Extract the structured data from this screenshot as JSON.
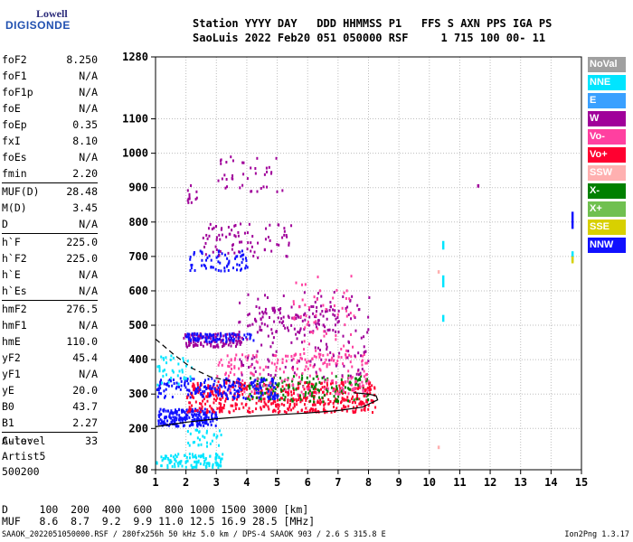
{
  "logo": {
    "line1": "Lowell",
    "line2": "DIGISONDE"
  },
  "header": {
    "line1": "Station YYYY DAY   DDD HHMMSS P1   FFS S AXN PPS IGA PS",
    "line2": "SaoLuis 2022 Feb20 051 050000 RSF     1 715 100 00- 11"
  },
  "params": [
    {
      "label": "foF2",
      "value": "8.250"
    },
    {
      "label": "foF1",
      "value": "N/A"
    },
    {
      "label": "foF1p",
      "value": "N/A"
    },
    {
      "label": "foE",
      "value": "N/A"
    },
    {
      "label": "foEp",
      "value": "0.35"
    },
    {
      "label": "fxI",
      "value": "8.10"
    },
    {
      "label": "foEs",
      "value": "N/A"
    },
    {
      "label": "fmin",
      "value": "2.20"
    },
    {
      "label": "MUF(D)",
      "value": "28.48"
    },
    {
      "label": "M(D)",
      "value": "3.45"
    },
    {
      "label": "D",
      "value": "N/A"
    },
    {
      "label": "h`F",
      "value": "225.0"
    },
    {
      "label": "h`F2",
      "value": "225.0"
    },
    {
      "label": "h`E",
      "value": "N/A"
    },
    {
      "label": "h`Es",
      "value": "N/A"
    },
    {
      "label": "hmF2",
      "value": "276.5"
    },
    {
      "label": "hmF1",
      "value": "N/A"
    },
    {
      "label": "hmE",
      "value": "110.0"
    },
    {
      "label": "yF2",
      "value": "45.4"
    },
    {
      "label": "yF1",
      "value": "N/A"
    },
    {
      "label": "yE",
      "value": "20.0"
    },
    {
      "label": "B0",
      "value": "43.7"
    },
    {
      "label": "B1",
      "value": "2.27"
    },
    {
      "label": "C-level",
      "value": "33"
    }
  ],
  "auto": {
    "line1": "Auto:",
    "line2": "Artist5",
    "line3": "500200"
  },
  "legend": [
    {
      "label": "NoVal",
      "color": "#a0a0a0"
    },
    {
      "label": "NNE",
      "color": "#00e5ff"
    },
    {
      "label": "E",
      "color": "#3aa0ff"
    },
    {
      "label": "W",
      "color": "#a0009a"
    },
    {
      "label": "Vo-",
      "color": "#ff40a0"
    },
    {
      "label": "Vo+",
      "color": "#ff0030"
    },
    {
      "label": "SSW",
      "color": "#ffb0b0"
    },
    {
      "label": "X-",
      "color": "#008000"
    },
    {
      "label": "X+",
      "color": "#70c050"
    },
    {
      "label": "SSE",
      "color": "#d8d000"
    },
    {
      "label": "NNW",
      "color": "#1010ff"
    }
  ],
  "footer": {
    "line1": "D     100  200  400  600  800 1000 1500 3000 [km]",
    "line2": "MUF   8.6  8.7  9.2  9.9 11.0 12.5 16.9 28.5 [MHz]"
  },
  "bottom": {
    "left": "SAAOK_2022051050000.RSF / 280fx256h 50 kHz 5.0 km / DPS-4 SAAOK 903 / 2.6 S 315.8 E",
    "right": "Ion2Png 1.3.17"
  },
  "chart_data": {
    "type": "scatter",
    "xlim": [
      1,
      15
    ],
    "ylim": [
      80,
      1280
    ],
    "x_ticks": [
      1,
      2,
      3,
      4,
      5,
      6,
      7,
      8,
      9,
      10,
      11,
      12,
      13,
      14,
      15
    ],
    "y_ticks": [
      80,
      200,
      300,
      400,
      500,
      600,
      700,
      800,
      900,
      1000,
      1100,
      1280
    ],
    "grid": true,
    "trace_lower": {
      "x": [
        1.0,
        2.0,
        3.0,
        4.0,
        5.0,
        6.0,
        7.0,
        7.8,
        8.3,
        8.25,
        8.0,
        7.5
      ],
      "y": [
        205,
        218,
        228,
        235,
        240,
        245,
        252,
        262,
        283,
        295,
        300,
        304
      ]
    },
    "trace_dashed": {
      "x": [
        1.0,
        1.6,
        2.2,
        2.8,
        3.6
      ],
      "y": [
        460,
        415,
        375,
        350,
        335
      ]
    },
    "clusters": [
      {
        "x": [
          1.05,
          3.0
        ],
        "y": [
          210,
          260
        ],
        "color": "#1010ff",
        "n": 220
      },
      {
        "x": [
          1.0,
          3.2
        ],
        "y": [
          90,
          130
        ],
        "color": "#00e5ff",
        "n": 120
      },
      {
        "x": [
          2.0,
          8.2
        ],
        "y": [
          250,
          340
        ],
        "color": "#ff0030",
        "n": 520
      },
      {
        "x": [
          4.0,
          8.0
        ],
        "y": [
          280,
          360
        ],
        "color": "#008000",
        "n": 160
      },
      {
        "x": [
          3.0,
          8.0
        ],
        "y": [
          300,
          420
        ],
        "color": "#ff40a0",
        "n": 220
      },
      {
        "x": [
          1.0,
          5.0
        ],
        "y": [
          290,
          350
        ],
        "color": "#1010ff",
        "n": 200
      },
      {
        "x": [
          1.9,
          3.8
        ],
        "y": [
          440,
          480
        ],
        "color": "#a0009a",
        "n": 130
      },
      {
        "x": [
          1.9,
          4.2
        ],
        "y": [
          455,
          480
        ],
        "color": "#1010ff",
        "n": 80
      },
      {
        "x": [
          4.0,
          7.0
        ],
        "y": [
          480,
          560
        ],
        "color": "#a0009a",
        "n": 90
      },
      {
        "x": [
          2.0,
          4.0
        ],
        "y": [
          660,
          720
        ],
        "color": "#1010ff",
        "n": 70
      },
      {
        "x": [
          2.5,
          5.5
        ],
        "y": [
          700,
          800
        ],
        "color": "#a0009a",
        "n": 80
      },
      {
        "x": [
          3.0,
          5.2
        ],
        "y": [
          880,
          1000
        ],
        "color": "#a0009a",
        "n": 40
      },
      {
        "x": [
          2.0,
          2.5
        ],
        "y": [
          860,
          910
        ],
        "color": "#a0009a",
        "n": 12
      },
      {
        "x": [
          3.7,
          8.0
        ],
        "y": [
          350,
          600
        ],
        "color": "#a0009a",
        "n": 150
      },
      {
        "x": [
          5.5,
          7.5
        ],
        "y": [
          400,
          650
        ],
        "color": "#ff40a0",
        "n": 70
      },
      {
        "x": [
          1.0,
          2.2
        ],
        "y": [
          330,
          420
        ],
        "color": "#00e5ff",
        "n": 40
      },
      {
        "x": [
          2.0,
          3.2
        ],
        "y": [
          150,
          200
        ],
        "color": "#00e5ff",
        "n": 30
      }
    ],
    "vertical_marks": [
      {
        "x": 10.45,
        "y": [
          720,
          745
        ],
        "color": "#00e5ff"
      },
      {
        "x": 10.45,
        "y": [
          610,
          645
        ],
        "color": "#00e5ff"
      },
      {
        "x": 10.45,
        "y": [
          510,
          530
        ],
        "color": "#00e5ff"
      },
      {
        "x": 14.7,
        "y": [
          780,
          830
        ],
        "color": "#1010ff"
      },
      {
        "x": 14.7,
        "y": [
          685,
          715
        ],
        "color": "#00e5ff"
      },
      {
        "x": 14.7,
        "y": [
          680,
          700
        ],
        "color": "#d8d000"
      },
      {
        "x": 11.6,
        "y": [
          900,
          910
        ],
        "color": "#a0009a"
      },
      {
        "x": 10.3,
        "y": [
          650,
          660
        ],
        "color": "#ffb0b0"
      },
      {
        "x": 10.3,
        "y": [
          140,
          150
        ],
        "color": "#ffb0b0"
      }
    ]
  }
}
